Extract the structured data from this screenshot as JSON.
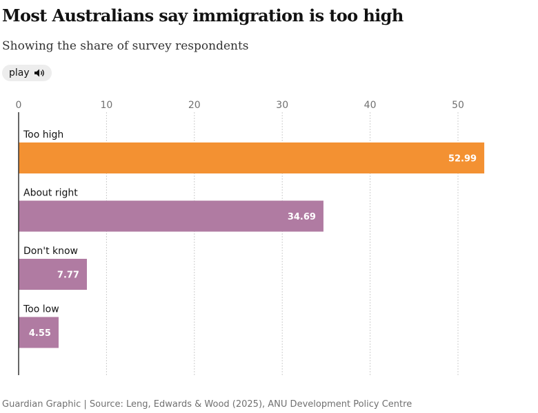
{
  "header": {
    "title": "Most Australians say immigration is too high",
    "subtitle": "Showing the share of survey respondents",
    "play_label": "play"
  },
  "footer": {
    "source": "Guardian Graphic | Source: Leng, Edwards & Wood (2025), ANU Development Policy Centre"
  },
  "chart_data": {
    "type": "bar",
    "orientation": "horizontal",
    "title": "Most Australians say immigration is too high",
    "subtitle": "Showing the share of survey respondents",
    "categories": [
      "Too high",
      "About right",
      "Don't know",
      "Too low"
    ],
    "values": [
      52.99,
      34.69,
      7.77,
      4.55
    ],
    "value_labels": [
      "52.99",
      "34.69",
      "7.77",
      "4.55"
    ],
    "colors": [
      "#f39132",
      "#b07ba2",
      "#b07ba2",
      "#b07ba2"
    ],
    "xlim": [
      0,
      55
    ],
    "xticks": [
      0,
      10,
      20,
      30,
      40,
      50
    ],
    "xtick_labels": [
      "0",
      "10",
      "20",
      "30",
      "40",
      "50"
    ],
    "xaxis_position": "top",
    "grid": "vertical dotted",
    "xlabel": "",
    "ylabel": ""
  },
  "colors": {
    "grid": "#cccccc",
    "baseline": "#333333",
    "tick_text": "#707070",
    "value_text": "#ffffff"
  }
}
